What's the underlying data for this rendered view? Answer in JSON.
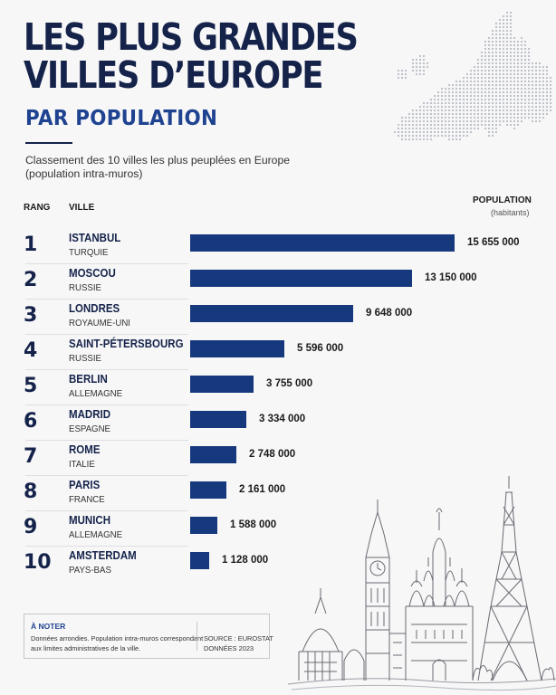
{
  "header": {
    "title_line1": "LES PLUS GRANDES",
    "title_line2": "VILLES D’EUROPE",
    "subtitle": "PAR POPULATION",
    "description_line1": "Classement des 10 villes les plus peuplées en Europe",
    "description_line2": "(population intra-muros)"
  },
  "columns": {
    "rank": "RANG",
    "city": "VILLE",
    "population": "POPULATION",
    "population_unit": "(habitants)"
  },
  "chart_data": {
    "type": "bar",
    "orientation": "horizontal",
    "title": "LES PLUS GRANDES VILLES D’EUROPE",
    "subtitle": "PAR POPULATION",
    "xlim": [
      0,
      15655000
    ],
    "grid": false,
    "bar_color": "#16397e",
    "ranks": [
      "1",
      "2",
      "3",
      "4",
      "5",
      "6",
      "7",
      "8",
      "9",
      "10"
    ],
    "categories": [
      "ISTANBUL",
      "MOSCOU",
      "LONDRES",
      "SAINT-PÉTERSBOURG",
      "BERLIN",
      "MADRID",
      "ROME",
      "PARIS",
      "MUNICH",
      "AMSTERDAM"
    ],
    "countries": [
      "TURQUIE",
      "RUSSIE",
      "ROYAUME-UNI",
      "RUSSIE",
      "ALLEMAGNE",
      "ESPAGNE",
      "ITALIE",
      "FRANCE",
      "ALLEMAGNE",
      "PAYS-BAS"
    ],
    "values": [
      15655000,
      13150000,
      9648000,
      5596000,
      3755000,
      3334000,
      2748000,
      2161000,
      1588000,
      1128000
    ],
    "value_labels": [
      "15 655 000",
      "13 150 000",
      "9 648 000",
      "5 596 000",
      "3 755 000",
      "3 334 000",
      "2 748 000",
      "2 161 000",
      "1 588 000",
      "1 128 000"
    ]
  },
  "footer": {
    "note_title": "À NOTER",
    "note_line1": "Données arrondies. Population intra-muros correspondant",
    "note_line2": "aux limites administratives de la ville.",
    "source_line1": "SOURCE : EUROSTAT",
    "source_line2": "DONNÉES 2023"
  },
  "colors": {
    "title": "#15234a",
    "subtitle": "#1f4390",
    "bar": "#16397e",
    "background": "#f7f7f8"
  },
  "icons": {
    "map": "europe-dot-map-icon",
    "landmarks": "landmarks-sketch-icon"
  }
}
